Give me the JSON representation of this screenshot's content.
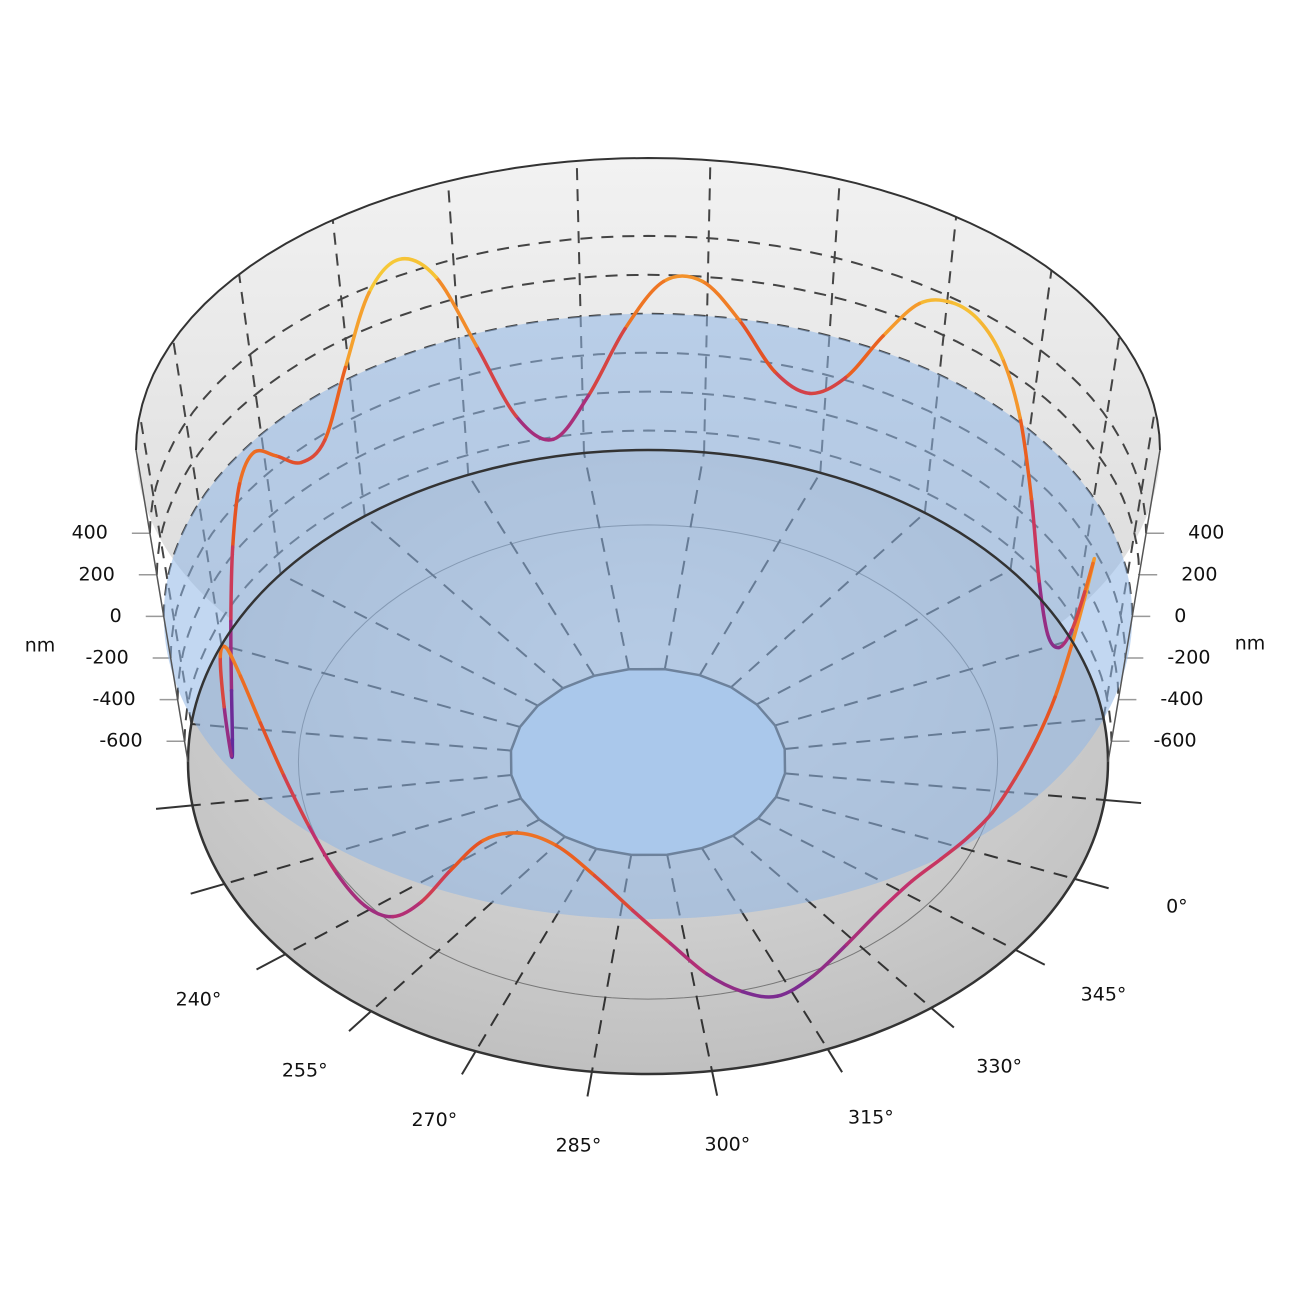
{
  "chart_data": {
    "type": "line",
    "zlabel": "nm",
    "x": [
      0,
      5,
      10,
      15,
      20,
      25,
      30,
      35,
      40,
      45,
      50,
      55,
      60,
      65,
      70,
      75,
      80,
      85,
      90,
      95,
      100,
      105,
      110,
      115,
      120,
      125,
      130,
      135,
      140,
      145,
      150,
      155,
      160,
      165,
      170,
      175,
      180,
      185,
      190,
      195,
      200,
      205,
      210,
      215,
      220,
      225,
      230,
      235,
      240,
      245,
      250,
      255,
      260,
      265,
      270,
      275,
      280,
      285,
      290,
      295,
      300,
      305,
      310,
      315,
      320,
      325,
      330,
      335,
      340,
      345,
      350,
      355
    ],
    "values": [
      100,
      250,
      380,
      420,
      300,
      50,
      -250,
      -450,
      -500,
      -350,
      -50,
      250,
      450,
      550,
      560,
      480,
      250,
      -20,
      -150,
      -80,
      150,
      330,
      320,
      80,
      -250,
      -450,
      -300,
      100,
      500,
      650,
      550,
      250,
      -30,
      -50,
      80,
      200,
      150,
      -50,
      -300,
      -520,
      -640,
      -600,
      -250,
      100,
      250,
      220,
      100,
      -50,
      -200,
      -330,
      -400,
      -380,
      -250,
      -50,
      130,
      200,
      170,
      50,
      -100,
      -250,
      -400,
      -500,
      -550,
      -500,
      -400,
      -300,
      -230,
      -200,
      -180,
      -150,
      -80,
      0
    ],
    "ylim": [
      -700,
      800
    ],
    "yticks": [
      -600,
      -400,
      -200,
      0,
      200,
      400
    ],
    "xticks": [
      {
        "value": 240,
        "label": "240°"
      },
      {
        "value": 255,
        "label": "255°"
      },
      {
        "value": 270,
        "label": "270°"
      },
      {
        "value": 285,
        "label": "285°"
      },
      {
        "value": 300,
        "label": "300°"
      },
      {
        "value": 315,
        "label": "315°"
      },
      {
        "value": 330,
        "label": "330°"
      },
      {
        "value": 345,
        "label": "345°"
      },
      {
        "value": 0,
        "label": "0°"
      }
    ],
    "grid": true,
    "plane_color": "#8fb6e6"
  }
}
